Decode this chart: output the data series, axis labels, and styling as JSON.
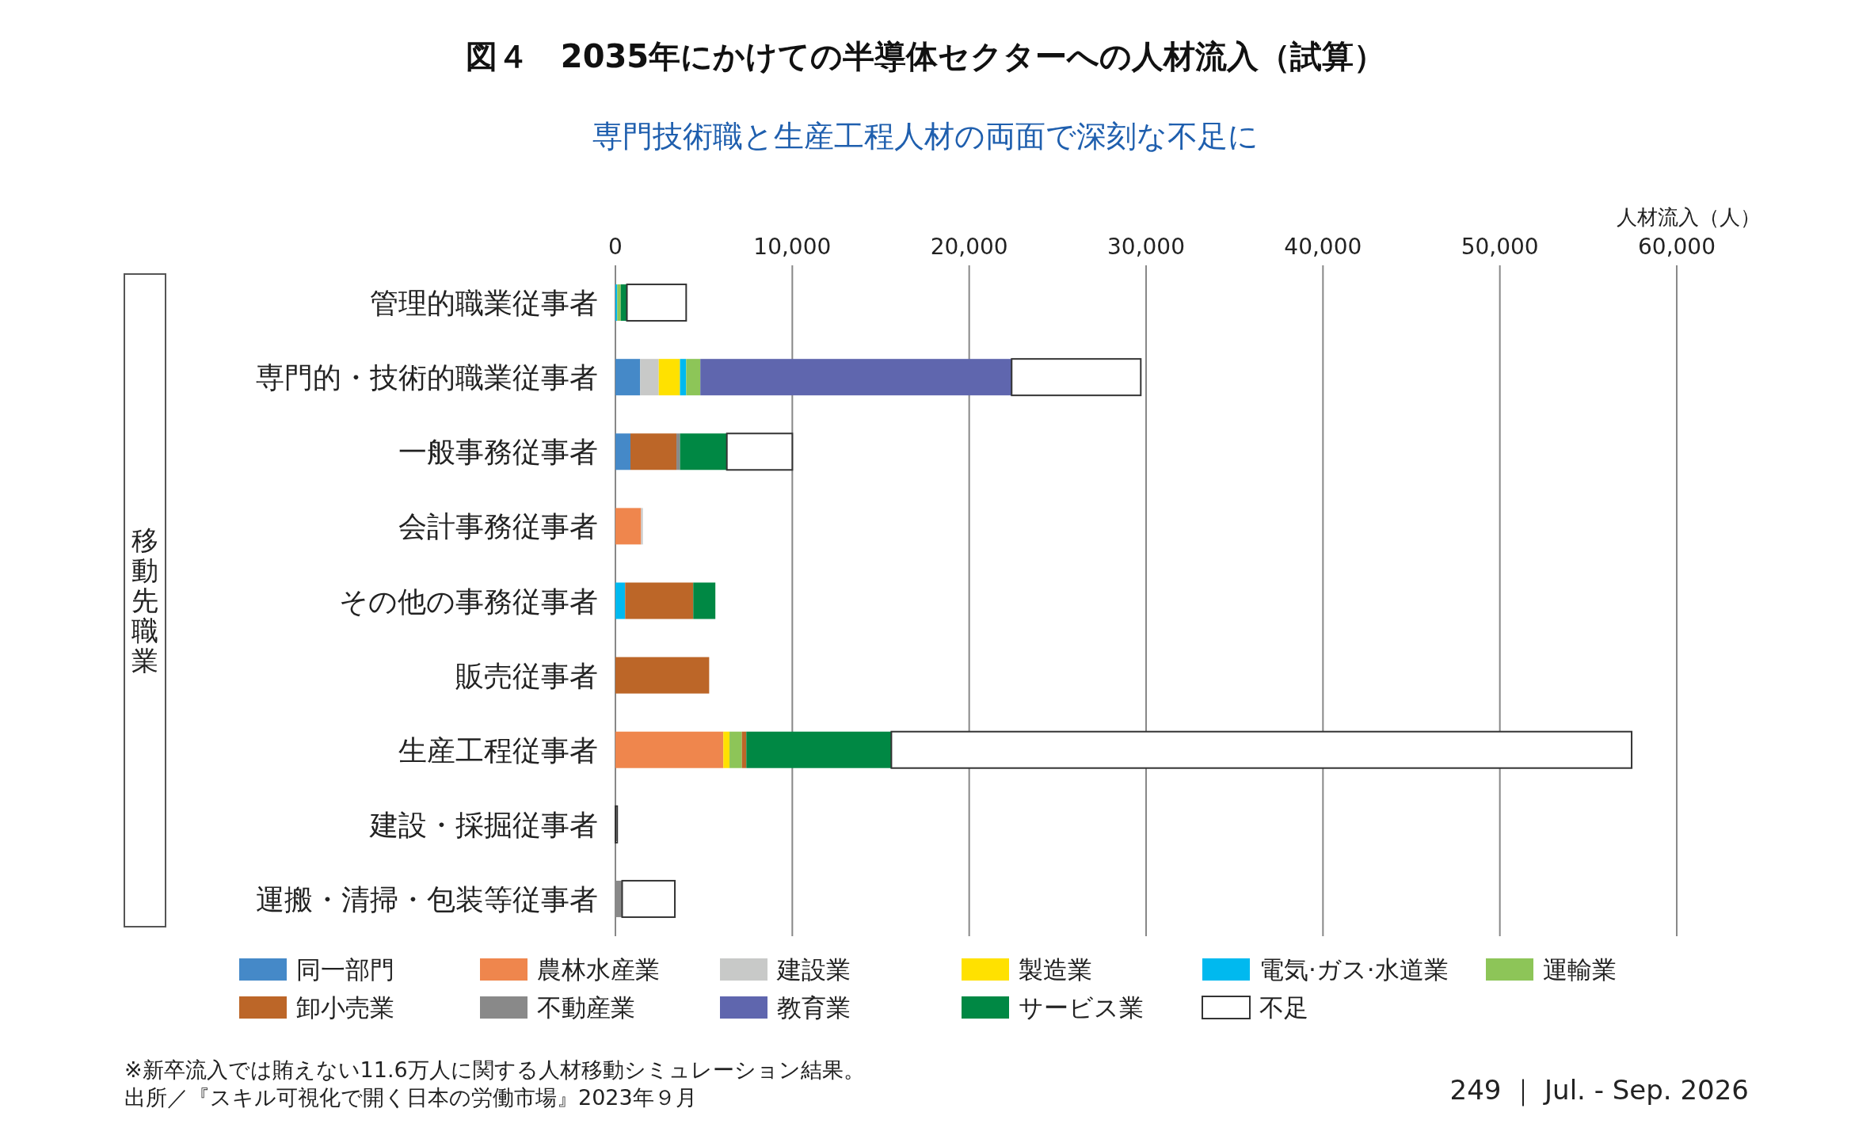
{
  "chart_data": {
    "type": "bar",
    "orientation": "horizontal",
    "stacked": true,
    "title": "図４　2035年にかけての半導体セクターへの人材流入（試算）",
    "subtitle": "専門技術職と生産工程人材の両面で深刻な不足に",
    "xlabel": "人材流入（人）",
    "ylabel": "移動先職業",
    "categories": [
      "管理的職業従事者",
      "専門的・技術的職業従事者",
      "一般事務従事者",
      "会計事務従事者",
      "その他の事務従事者",
      "販売従事者",
      "生産工程従事者",
      "建設・採掘従事者",
      "運搬・清掃・包装等従事者"
    ],
    "series": [
      {
        "name": "同一部門",
        "color": "#4589c8",
        "values": [
          null,
          1400,
          850,
          null,
          null,
          null,
          null,
          null,
          null
        ]
      },
      {
        "name": "農林水産業",
        "color": "#ef864d",
        "values": [
          null,
          null,
          null,
          1450,
          null,
          null,
          6100,
          null,
          null
        ]
      },
      {
        "name": "建設業",
        "color": "#c8c9c8",
        "values": [
          null,
          1050,
          null,
          100,
          null,
          null,
          null,
          null,
          null
        ]
      },
      {
        "name": "製造業",
        "color": "#ffe100",
        "values": [
          null,
          1200,
          null,
          null,
          null,
          null,
          350,
          null,
          null
        ]
      },
      {
        "name": "電気·ガス·水道業",
        "color": "#00b9ef",
        "values": [
          100,
          350,
          null,
          null,
          550,
          null,
          null,
          null,
          null
        ]
      },
      {
        "name": "運輸業",
        "color": "#8dc558",
        "values": [
          200,
          800,
          null,
          null,
          null,
          null,
          700,
          null,
          null
        ]
      },
      {
        "name": "卸小売業",
        "color": "#bc6628",
        "values": [
          null,
          null,
          2600,
          null,
          3850,
          5300,
          250,
          null,
          null
        ]
      },
      {
        "name": "不動産業",
        "color": "#898989",
        "values": [
          null,
          null,
          200,
          null,
          null,
          null,
          null,
          null,
          380
        ]
      },
      {
        "name": "教育業",
        "color": "#5f66ae",
        "values": [
          null,
          17600,
          null,
          null,
          null,
          null,
          null,
          null,
          null
        ]
      },
      {
        "name": "サービス業",
        "color": "#008844",
        "values": [
          350,
          null,
          2650,
          null,
          1250,
          null,
          8200,
          null,
          null
        ]
      },
      {
        "name": "不足",
        "color": "#ffffff",
        "values": [
          3350,
          7300,
          3700,
          null,
          null,
          null,
          41850,
          100,
          2980
        ]
      }
    ],
    "xlim": [
      0,
      60000
    ],
    "xticks": [
      0,
      {
        "value": 10000,
        "label": "10,000"
      },
      {
        "value": 20000,
        "label": "20,000"
      },
      {
        "value": 30000,
        "label": "30,000"
      },
      {
        "value": 40000,
        "label": "40,000"
      },
      {
        "value": 50000,
        "label": "50,000"
      },
      {
        "value": 60000,
        "label": "60,000"
      }
    ],
    "grid": "x",
    "legend": "bottom",
    "annotations": [
      "※新卒流入では賄えない11.6万人に関する人材移動シミュレーション結果。",
      "出所／『スキル可視化で開く日本の労働市場』2023年９月",
      "249 ｜ Jul. - Sep. 2026"
    ]
  }
}
